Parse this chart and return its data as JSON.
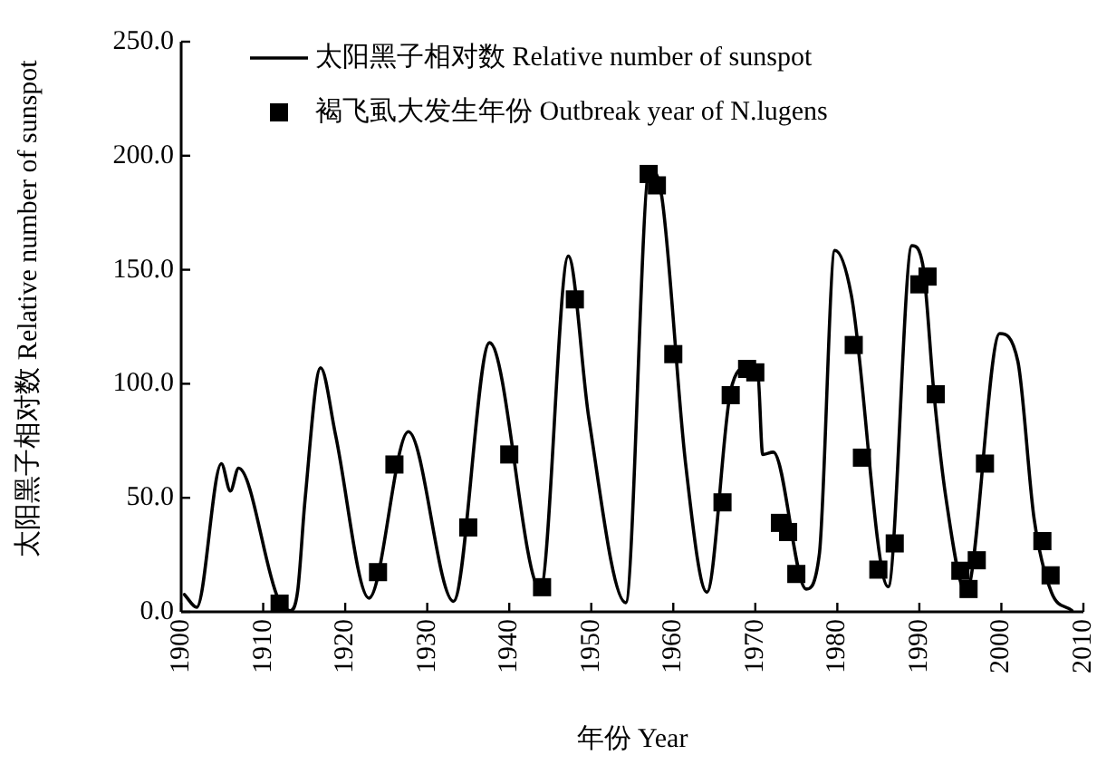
{
  "chart_data": {
    "type": "line",
    "xlabel": "年份 Year",
    "ylabel": "太阳黑子相对数 Relative number of sunspot",
    "xlim": [
      1900,
      2010
    ],
    "xticks": [
      1900,
      1910,
      1920,
      1930,
      1940,
      1950,
      1960,
      1970,
      1980,
      1990,
      2000,
      2010
    ],
    "ylim": [
      0,
      250
    ],
    "yticks": [
      {
        "value": 0,
        "label": "0.0"
      },
      {
        "value": 50,
        "label": "50.0"
      },
      {
        "value": 100,
        "label": "100.0"
      },
      {
        "value": 150,
        "label": "150.0"
      },
      {
        "value": 200,
        "label": "200.0"
      },
      {
        "value": 250,
        "label": "250.0"
      }
    ],
    "grid": false,
    "legend": "top",
    "series": [
      {
        "name": "太阳黑子相对数 Relative number of sunspot",
        "color": "#000000",
        "marker": "none",
        "line_style": "solid",
        "x": [
          1900.4,
          1901.9,
          1904.9,
          1906,
          1907,
          1911.8,
          1913.3,
          1914.2,
          1915.1,
          1917,
          1918.8,
          1922.9,
          1927.7,
          1933.2,
          1937.6,
          1943.8,
          1947.2,
          1949.7,
          1954.2,
          1957.1,
          1958.6,
          1961.5,
          1964.1,
          1967,
          1968.9,
          1970.3,
          1970.9,
          1972.2,
          1976.2,
          1977.8,
          1979.7,
          1981.7,
          1986.2,
          1989.1,
          1990.4,
          1991.8,
          1993.2,
          1995.7,
          1999.8,
          2002,
          2004,
          2006.1,
          2008.6
        ],
        "values": [
          7.6,
          2,
          65,
          53,
          63,
          6,
          0.5,
          9,
          49,
          107,
          78,
          6,
          79,
          4.6,
          118,
          10,
          156,
          85,
          4,
          194,
          182,
          65,
          8.6,
          97,
          107,
          105,
          69,
          70,
          10,
          25,
          158.5,
          139,
          11,
          160.6,
          152.6,
          95,
          51,
          8.6,
          122,
          110,
          40.6,
          8.6,
          0.6
        ]
      },
      {
        "name": "褐飞虱大发生年份 Outbreak year of N.lugens",
        "type": "scatter",
        "color": "#000000",
        "marker": "square",
        "x": [
          1912,
          1924,
          1926,
          1935,
          1940,
          1944,
          1948,
          1957,
          1958,
          1960,
          1966,
          1967,
          1969,
          1970,
          1973,
          1974,
          1975,
          1982,
          1983,
          1985,
          1987,
          1990,
          1991,
          1992,
          1995,
          1996,
          1997,
          1998,
          2005,
          2006
        ],
        "values": [
          3.6,
          17.4,
          64.6,
          37,
          69,
          10.8,
          137,
          192,
          187,
          113,
          48,
          95,
          106.5,
          105,
          39,
          35,
          16.6,
          117,
          67.6,
          18.5,
          30,
          143.6,
          147,
          95.4,
          18,
          10,
          22.6,
          65,
          31,
          16
        ]
      }
    ]
  }
}
